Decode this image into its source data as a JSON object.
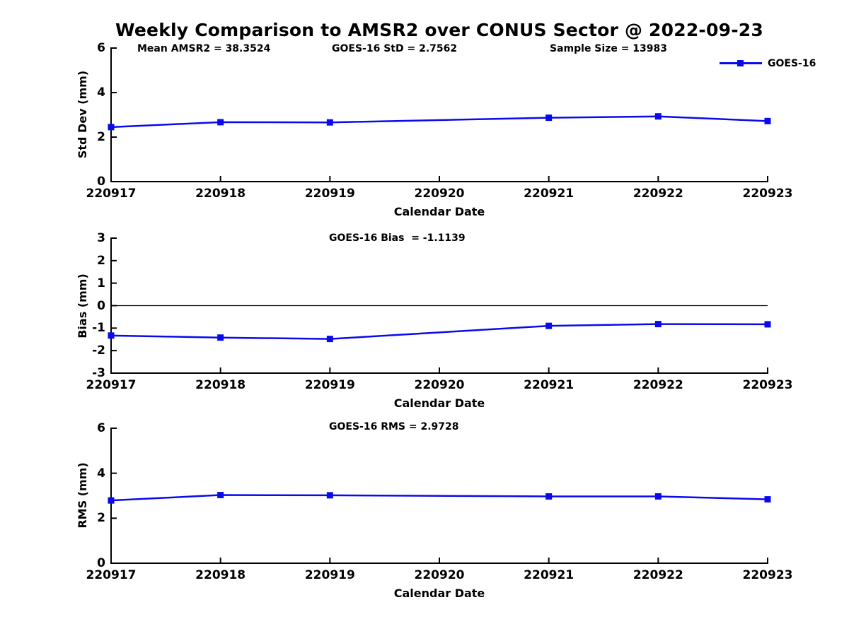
{
  "title": "Weekly Comparison to AMSR2 over CONUS Sector @ 2022-09-23",
  "legend": {
    "label": "GOES-16"
  },
  "colors": {
    "line": "#0a0aee",
    "axis": "#000000",
    "text": "#000000",
    "background": "#ffffff"
  },
  "chart_data": [
    {
      "type": "line",
      "annotations": [
        "Mean AMSR2 = 38.3524",
        "GOES-16 StD = 2.7562",
        "Sample Size = 13983"
      ],
      "categories": [
        "220917",
        "220918",
        "220919",
        "220920",
        "220921",
        "220922",
        "220923"
      ],
      "series": [
        {
          "name": "GOES-16",
          "x": [
            "220917",
            "220918",
            "220919",
            "220921",
            "220922",
            "220923"
          ],
          "values": [
            2.45,
            2.67,
            2.66,
            2.87,
            2.93,
            2.72
          ]
        }
      ],
      "xlabel": "Calendar Date",
      "ylabel": "Std Dev (mm)",
      "ylim": [
        0,
        6
      ],
      "yticks": [
        0,
        2,
        4,
        6
      ],
      "grid": false,
      "zero_line": false,
      "legend_position": "top-right-outside"
    },
    {
      "type": "line",
      "annotations": [
        "GOES-16 Bias  = -1.1139"
      ],
      "categories": [
        "220917",
        "220918",
        "220919",
        "220920",
        "220921",
        "220922",
        "220923"
      ],
      "series": [
        {
          "name": "GOES-16",
          "x": [
            "220917",
            "220918",
            "220919",
            "220921",
            "220922",
            "220923"
          ],
          "values": [
            -1.33,
            -1.42,
            -1.48,
            -0.9,
            -0.82,
            -0.83
          ]
        }
      ],
      "xlabel": "Calendar Date",
      "ylabel": "Bias (mm)",
      "ylim": [
        -3,
        3
      ],
      "yticks": [
        3,
        2,
        1,
        0,
        -1,
        -2,
        -3
      ],
      "grid": false,
      "zero_line": true,
      "legend_position": "none"
    },
    {
      "type": "line",
      "annotations": [
        "GOES-16 RMS = 2.9728"
      ],
      "categories": [
        "220917",
        "220918",
        "220919",
        "220920",
        "220921",
        "220922",
        "220923"
      ],
      "series": [
        {
          "name": "GOES-16",
          "x": [
            "220917",
            "220918",
            "220919",
            "220921",
            "220922",
            "220923"
          ],
          "values": [
            2.79,
            3.03,
            3.02,
            2.97,
            2.97,
            2.84
          ]
        }
      ],
      "xlabel": "Calendar Date",
      "ylabel": "RMS (mm)",
      "ylim": [
        0,
        6
      ],
      "yticks": [
        0,
        2,
        4,
        6
      ],
      "grid": false,
      "zero_line": false,
      "legend_position": "none"
    }
  ]
}
